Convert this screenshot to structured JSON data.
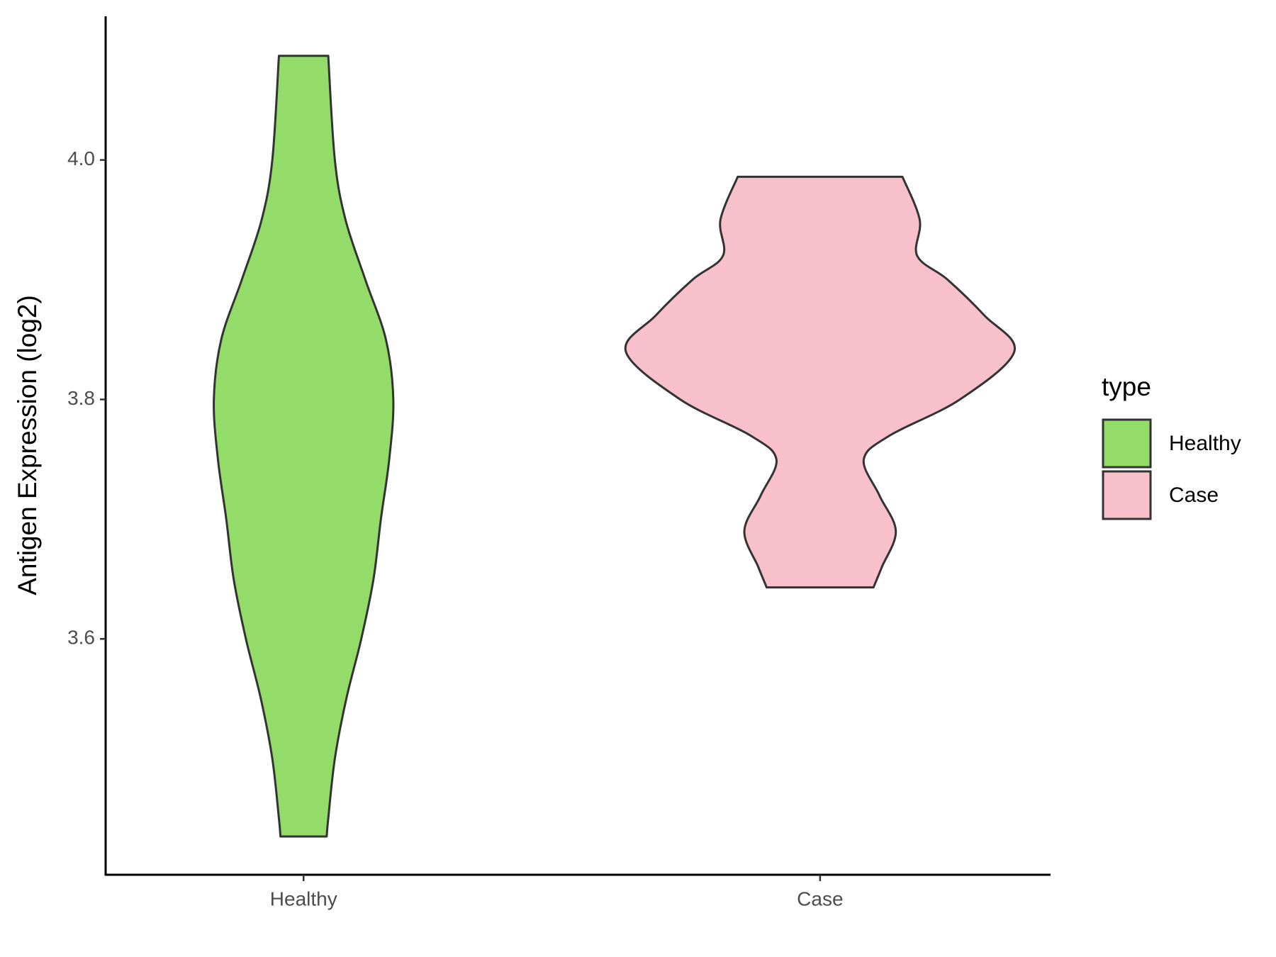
{
  "chart_data": {
    "type": "violin",
    "ylabel": "Antigen Expression (log2)",
    "legend_title": "type",
    "categories": [
      "Healthy",
      "Case"
    ],
    "series": [
      {
        "name": "Healthy",
        "color": "#93dc6a",
        "y": [
          4.087,
          4.0,
          3.95,
          3.9,
          3.85,
          3.8,
          3.75,
          3.7,
          3.65,
          3.6,
          3.55,
          3.5,
          3.45,
          3.435
        ],
        "widths": [
          0.127,
          0.161,
          0.216,
          0.318,
          0.424,
          0.462,
          0.441,
          0.398,
          0.36,
          0.297,
          0.22,
          0.161,
          0.127,
          0.119
        ]
      },
      {
        "name": "Case",
        "color": "#f7c0cb",
        "y": [
          3.986,
          3.95,
          3.92,
          3.9,
          3.87,
          3.84,
          3.8,
          3.77,
          3.75,
          3.72,
          3.69,
          3.66,
          3.643
        ],
        "widths": [
          0.424,
          0.513,
          0.5,
          0.657,
          0.847,
          1.0,
          0.72,
          0.36,
          0.225,
          0.305,
          0.39,
          0.318,
          0.275
        ]
      }
    ],
    "ylim": [
      3.403,
      4.12
    ],
    "yticks": [
      {
        "value": 3.6,
        "label": "3.6"
      },
      {
        "value": 3.8,
        "label": "3.8"
      },
      {
        "value": 4.0,
        "label": "4.0"
      }
    ]
  }
}
